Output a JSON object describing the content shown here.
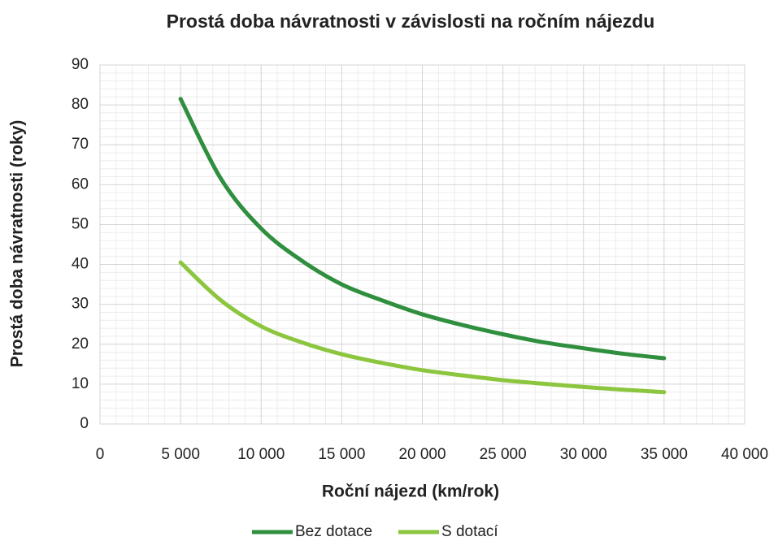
{
  "chart_data": {
    "type": "line",
    "title": "Prostá doba návratnosti v závislosti na ročním nájezdu",
    "x_label": "Roční nájezd (km/rok)",
    "y_label": "Prostá doba návratnosti (roky)",
    "x": [
      5000,
      7500,
      10000,
      12500,
      15000,
      17500,
      20000,
      22500,
      25000,
      27500,
      30000,
      32500,
      35000
    ],
    "series": [
      {
        "name": "Bez dotace",
        "color": "#2f8f3e",
        "values": [
          81.5,
          61.5,
          49,
          41,
          35,
          31,
          27.5,
          24.8,
          22.5,
          20.5,
          19,
          17.6,
          16.5
        ]
      },
      {
        "name": "S dotací",
        "color": "#8cc63f",
        "values": [
          40.5,
          31,
          24.5,
          20.5,
          17.5,
          15.3,
          13.5,
          12.2,
          11,
          10.1,
          9.3,
          8.6,
          8
        ]
      }
    ],
    "xlim": [
      0,
      40000
    ],
    "xticks": [
      0,
      {
        "value": 5000,
        "label": "5 000"
      },
      {
        "value": 10000,
        "label": "10 000"
      },
      {
        "value": 15000,
        "label": "15 000"
      },
      {
        "value": 20000,
        "label": "20 000"
      },
      {
        "value": 25000,
        "label": "25 000"
      },
      {
        "value": 30000,
        "label": "30 000"
      },
      {
        "value": 35000,
        "label": "35 000"
      },
      {
        "value": 40000,
        "label": "40 000"
      }
    ],
    "ylim": [
      0,
      90
    ],
    "yticks": [
      0,
      10,
      20,
      30,
      40,
      50,
      60,
      70,
      80,
      90
    ],
    "grid": true,
    "minor_grid": true,
    "legend": "bottom"
  }
}
